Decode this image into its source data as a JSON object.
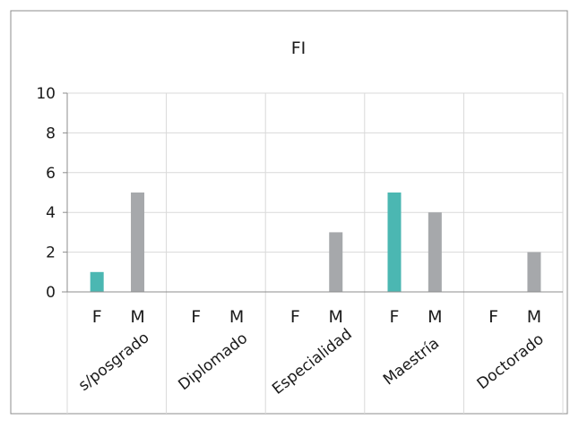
{
  "chart_data": {
    "type": "bar",
    "title": "FI",
    "groups": [
      "s/posgrado",
      "Diplomado",
      "Especialidad",
      "Maestría",
      "Doctorado"
    ],
    "subcategories": [
      "F",
      "M"
    ],
    "series": [
      {
        "values": [
          1,
          0,
          0,
          5,
          0
        ],
        "color": "#4BB7B2"
      },
      {
        "values": [
          5,
          0,
          3,
          4,
          2
        ],
        "color": "#A6A8AB"
      }
    ],
    "yticks": [
      "0",
      "2",
      "4",
      "6",
      "8",
      "10"
    ],
    "ylim": [
      0,
      10
    ],
    "grid": true,
    "legend": "none"
  }
}
